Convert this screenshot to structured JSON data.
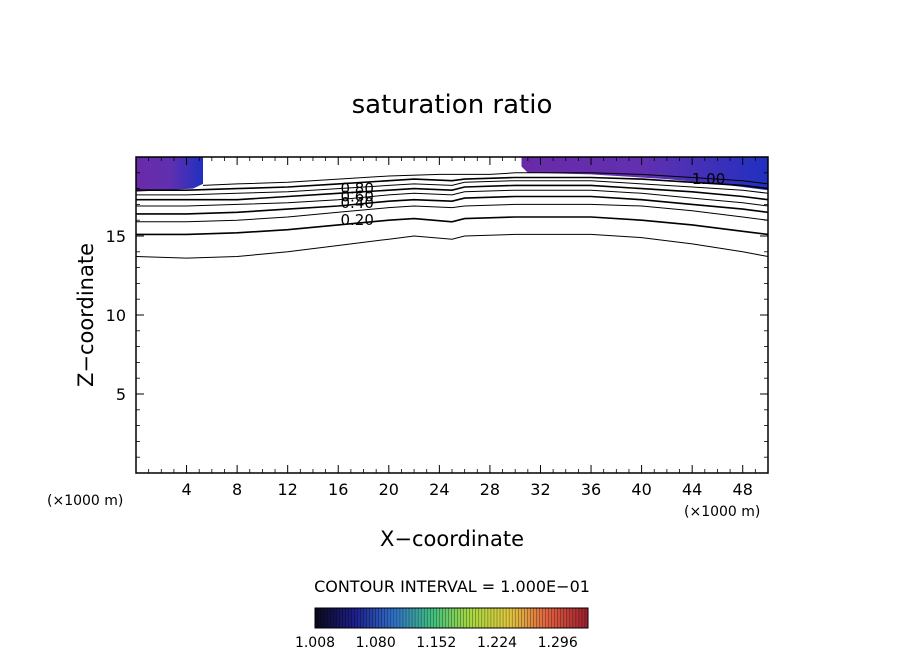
{
  "chart_data": {
    "type": "contour",
    "title": "saturation ratio",
    "xlabel": "X−coordinate",
    "ylabel": "Z−coordinate",
    "x_unit_left": "(×1000 m)",
    "x_unit_right": "(×1000 m)",
    "xlim": [
      0,
      50
    ],
    "ylim": [
      0,
      20
    ],
    "x_ticks": [
      4,
      8,
      12,
      16,
      20,
      24,
      28,
      32,
      36,
      40,
      44,
      48
    ],
    "y_ticks": [
      5,
      10,
      15
    ],
    "contour_interval_text": "CONTOUR INTERVAL = 1.000E−01",
    "contour_labels": [
      {
        "text": "0.80",
        "x": 17.5,
        "z": 18.0
      },
      {
        "text": "0.60",
        "x": 17.5,
        "z": 17.5
      },
      {
        "text": "0.40",
        "x": 17.5,
        "z": 17.1
      },
      {
        "text": "0.20",
        "x": 17.5,
        "z": 16.0
      },
      {
        "text": "1.00",
        "x": 45.3,
        "z": 18.6
      }
    ],
    "contours": [
      {
        "level": 0.1,
        "points": [
          [
            0,
            13.7
          ],
          [
            4,
            13.6
          ],
          [
            8,
            13.7
          ],
          [
            12,
            14.0
          ],
          [
            16,
            14.4
          ],
          [
            20,
            14.8
          ],
          [
            22,
            15.0
          ],
          [
            25,
            14.8
          ],
          [
            26,
            15.0
          ],
          [
            30,
            15.1
          ],
          [
            36,
            15.1
          ],
          [
            40,
            14.9
          ],
          [
            44,
            14.5
          ],
          [
            48,
            14.0
          ],
          [
            50,
            13.7
          ]
        ]
      },
      {
        "level": 0.2,
        "points": [
          [
            0,
            15.1
          ],
          [
            4,
            15.1
          ],
          [
            8,
            15.2
          ],
          [
            12,
            15.4
          ],
          [
            16,
            15.7
          ],
          [
            20,
            16.0
          ],
          [
            22,
            16.1
          ],
          [
            25,
            15.9
          ],
          [
            26,
            16.1
          ],
          [
            30,
            16.2
          ],
          [
            36,
            16.2
          ],
          [
            40,
            16.0
          ],
          [
            44,
            15.7
          ],
          [
            48,
            15.3
          ],
          [
            50,
            15.1
          ]
        ]
      },
      {
        "level": 0.3,
        "points": [
          [
            0,
            15.9
          ],
          [
            4,
            15.9
          ],
          [
            8,
            16.0
          ],
          [
            12,
            16.2
          ],
          [
            16,
            16.5
          ],
          [
            20,
            16.8
          ],
          [
            22,
            16.9
          ],
          [
            25,
            16.8
          ],
          [
            26,
            16.9
          ],
          [
            30,
            17.0
          ],
          [
            36,
            17.0
          ],
          [
            40,
            16.9
          ],
          [
            44,
            16.6
          ],
          [
            48,
            16.2
          ],
          [
            50,
            16.0
          ]
        ]
      },
      {
        "level": 0.4,
        "points": [
          [
            0,
            16.4
          ],
          [
            4,
            16.4
          ],
          [
            8,
            16.5
          ],
          [
            12,
            16.7
          ],
          [
            16,
            16.9
          ],
          [
            20,
            17.2
          ],
          [
            22,
            17.3
          ],
          [
            25,
            17.2
          ],
          [
            26,
            17.4
          ],
          [
            30,
            17.5
          ],
          [
            36,
            17.5
          ],
          [
            40,
            17.3
          ],
          [
            44,
            17.0
          ],
          [
            48,
            16.7
          ],
          [
            50,
            16.5
          ]
        ]
      },
      {
        "level": 0.5,
        "points": [
          [
            0,
            16.9
          ],
          [
            4,
            16.9
          ],
          [
            8,
            17.0
          ],
          [
            12,
            17.1
          ],
          [
            16,
            17.3
          ],
          [
            20,
            17.6
          ],
          [
            22,
            17.7
          ],
          [
            25,
            17.6
          ],
          [
            26,
            17.8
          ],
          [
            30,
            17.9
          ],
          [
            36,
            17.9
          ],
          [
            40,
            17.7
          ],
          [
            44,
            17.4
          ],
          [
            48,
            17.1
          ],
          [
            50,
            16.9
          ]
        ]
      },
      {
        "level": 0.6,
        "points": [
          [
            0,
            17.3
          ],
          [
            4,
            17.3
          ],
          [
            8,
            17.3
          ],
          [
            12,
            17.5
          ],
          [
            16,
            17.7
          ],
          [
            20,
            17.9
          ],
          [
            22,
            18.0
          ],
          [
            25,
            17.9
          ],
          [
            26,
            18.1
          ],
          [
            30,
            18.2
          ],
          [
            36,
            18.2
          ],
          [
            40,
            18.0
          ],
          [
            44,
            17.8
          ],
          [
            48,
            17.5
          ],
          [
            50,
            17.3
          ]
        ]
      },
      {
        "level": 0.7,
        "points": [
          [
            0,
            17.6
          ],
          [
            4,
            17.6
          ],
          [
            8,
            17.7
          ],
          [
            12,
            17.8
          ],
          [
            16,
            18.0
          ],
          [
            20,
            18.2
          ],
          [
            22,
            18.3
          ],
          [
            25,
            18.2
          ],
          [
            26,
            18.4
          ],
          [
            30,
            18.5
          ],
          [
            36,
            18.5
          ],
          [
            40,
            18.3
          ],
          [
            44,
            18.1
          ],
          [
            48,
            17.9
          ],
          [
            50,
            17.7
          ]
        ]
      },
      {
        "level": 0.8,
        "points": [
          [
            0,
            17.9
          ],
          [
            4,
            17.9
          ],
          [
            8,
            18.0
          ],
          [
            12,
            18.1
          ],
          [
            16,
            18.3
          ],
          [
            20,
            18.5
          ],
          [
            22,
            18.6
          ],
          [
            25,
            18.5
          ],
          [
            26,
            18.6
          ],
          [
            30,
            18.7
          ],
          [
            36,
            18.7
          ],
          [
            40,
            18.6
          ],
          [
            44,
            18.4
          ],
          [
            48,
            18.2
          ],
          [
            50,
            18.0
          ]
        ]
      },
      {
        "level": 0.9,
        "points": [
          [
            5.3,
            18.2
          ],
          [
            8,
            18.3
          ],
          [
            12,
            18.4
          ],
          [
            16,
            18.6
          ],
          [
            20,
            18.8
          ],
          [
            24,
            18.9
          ],
          [
            28,
            18.9
          ],
          [
            30,
            19.0
          ],
          [
            36,
            19.0
          ],
          [
            40,
            18.9
          ],
          [
            44,
            18.7
          ],
          [
            48,
            18.5
          ],
          [
            50,
            18.3
          ]
        ]
      }
    ],
    "shaded_regions": [
      {
        "name": "left",
        "points": [
          [
            0,
            20
          ],
          [
            5.3,
            20
          ],
          [
            5.3,
            18.3
          ],
          [
            4.5,
            18.0
          ],
          [
            2,
            17.9
          ],
          [
            0,
            17.8
          ]
        ]
      },
      {
        "name": "right",
        "points": [
          [
            30.5,
            20
          ],
          [
            50,
            20
          ],
          [
            50,
            17.9
          ],
          [
            46,
            18.3
          ],
          [
            42,
            18.6
          ],
          [
            36,
            18.9
          ],
          [
            31,
            19.0
          ],
          [
            30.5,
            19.4
          ]
        ]
      }
    ],
    "colorbar": {
      "ticks": [
        "1.008",
        "1.080",
        "1.152",
        "1.224",
        "1.296"
      ],
      "min": 1.008,
      "max": 1.332,
      "colors": [
        "#0a0a1e",
        "#1e1e8c",
        "#3070c8",
        "#40c080",
        "#a8d840",
        "#e0c840",
        "#e06040",
        "#a02030"
      ]
    }
  }
}
